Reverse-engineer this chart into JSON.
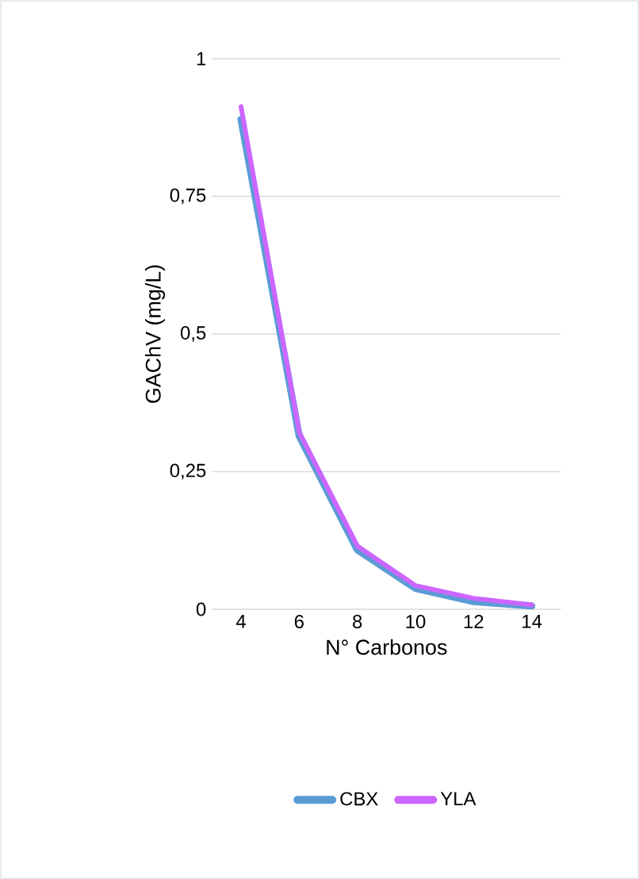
{
  "chart_data": {
    "type": "line",
    "xlabel": "N° Carbonos",
    "ylabel": "GAChV (mg/L)",
    "categories": [
      "4",
      "6",
      "8",
      "10",
      "12",
      "14"
    ],
    "series": [
      {
        "name": "CBX",
        "color": "#5b9bd5",
        "values": [
          0.89,
          0.315,
          0.108,
          0.038,
          0.014,
          0.006
        ]
      },
      {
        "name": "YLA",
        "color": "#cc66ff",
        "values": [
          0.913,
          0.322,
          0.115,
          0.043,
          0.02,
          0.008
        ]
      }
    ],
    "ylim": [
      0,
      1
    ],
    "yticks": [
      {
        "value": 0,
        "label": "0"
      },
      {
        "value": 0.25,
        "label": "0,25"
      },
      {
        "value": 0.5,
        "label": "0,5"
      },
      {
        "value": 0.75,
        "label": "0,75"
      },
      {
        "value": 1,
        "label": "1"
      }
    ],
    "grid": "y",
    "legend": "bottom"
  }
}
